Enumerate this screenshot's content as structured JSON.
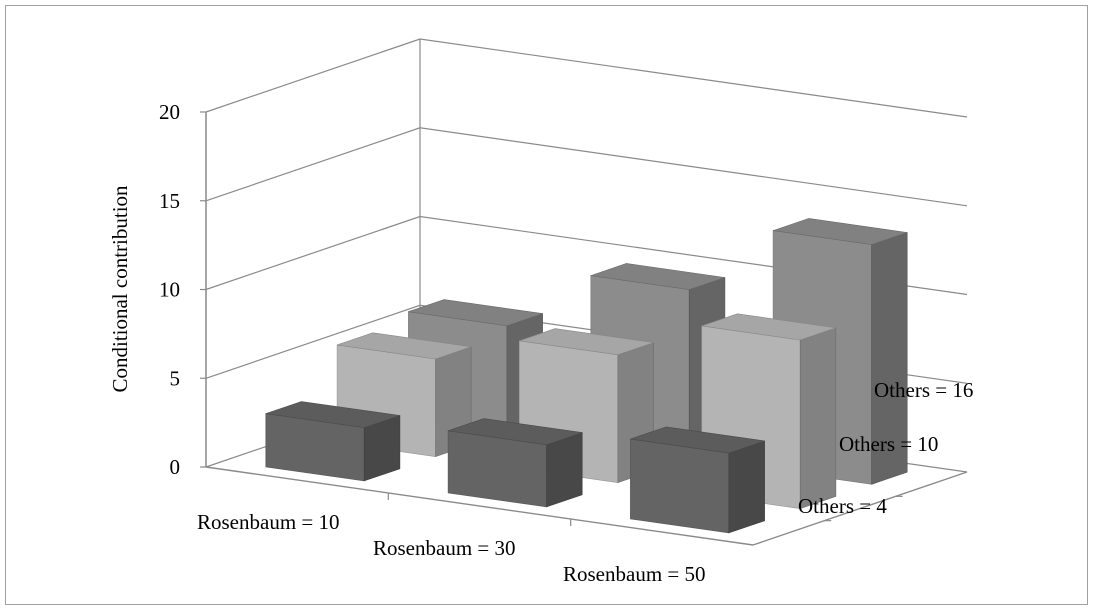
{
  "chart_data": {
    "type": "bar",
    "subtype": "3d-column",
    "ylabel": "Conditional contribution",
    "ylim": [
      0,
      20
    ],
    "yticks": [
      "0",
      "5",
      "10",
      "15",
      "20"
    ],
    "grid": true,
    "categories": [
      "Rosenbaum = 10",
      "Rosenbaum = 30",
      "Rosenbaum = 50"
    ],
    "depth_categories": [
      "Others = 4",
      "Others = 10",
      "Others = 16"
    ],
    "series": [
      {
        "values": [
          3.0,
          3.5,
          4.5
        ],
        "color": "#646464"
      },
      {
        "values": [
          5.5,
          7.2,
          9.5
        ],
        "color": "#b4b4b4"
      },
      {
        "values": [
          6.0,
          9.5,
          13.5
        ],
        "color": "#8c8c8c"
      }
    ]
  }
}
